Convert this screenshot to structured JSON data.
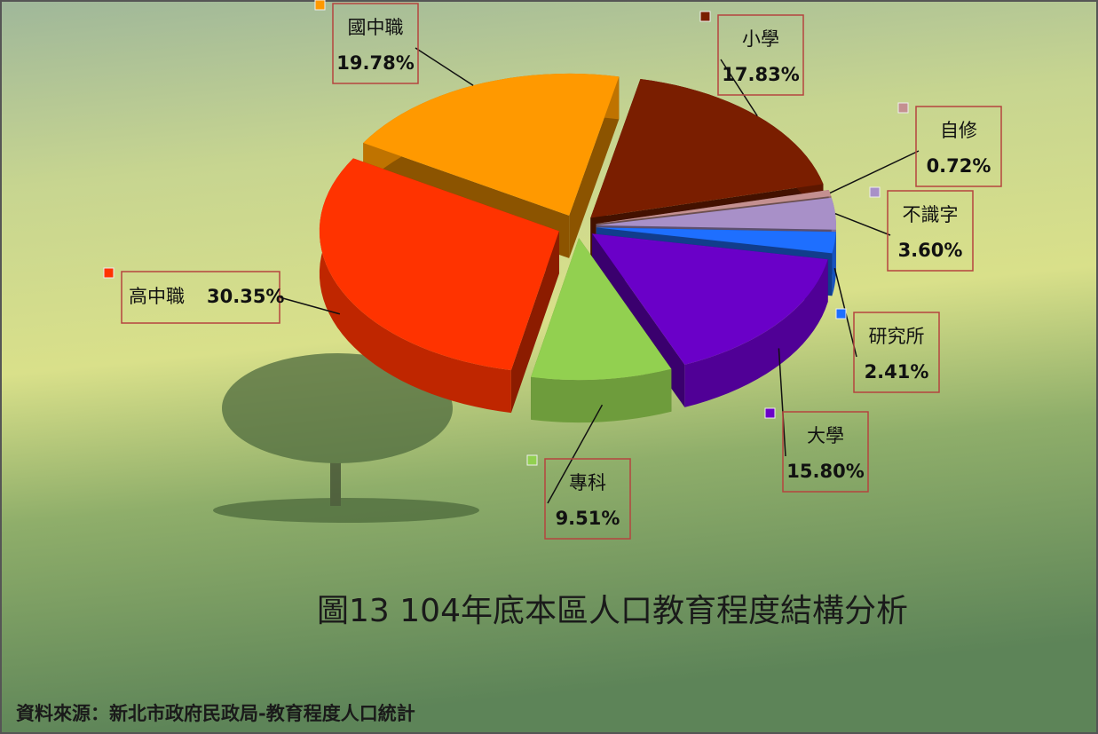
{
  "chart_data": {
    "type": "pie",
    "title": "圖13  104年底本區人口教育程度結構分析",
    "source": "資料來源：新北市政府民政局-教育程度人口統計",
    "categories": [
      "小學",
      "自修",
      "不識字",
      "研究所",
      "大學",
      "專科",
      "高中職",
      "國中職"
    ],
    "values": [
      17.83,
      0.72,
      3.6,
      2.41,
      15.8,
      9.51,
      30.35,
      19.78
    ],
    "value_labels": [
      "17.83%",
      "0.72%",
      "3.60%",
      "2.41%",
      "15.80%",
      "9.51%",
      "30.35%",
      "19.78%"
    ],
    "colors": [
      "#7a1e00",
      "#c49090",
      "#a890c8",
      "#1e6fff",
      "#6a00c8",
      "#92d050",
      "#ff3300",
      "#ff9900"
    ]
  }
}
